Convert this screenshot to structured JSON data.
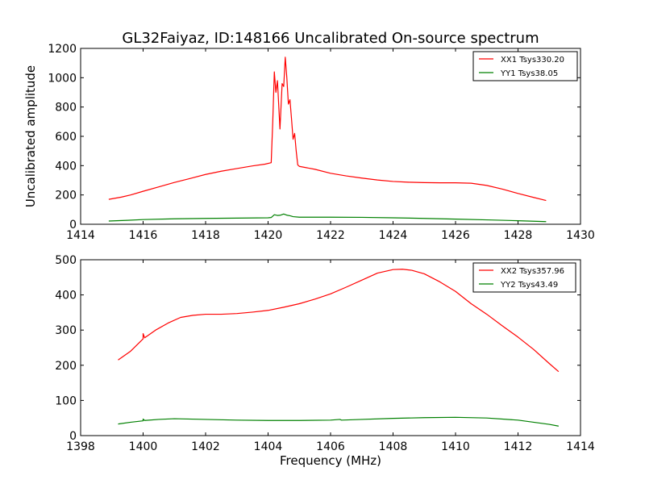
{
  "chart_data": [
    {
      "type": "line",
      "title": "GL32Faiyaz, ID:148166 Uncalibrated On-source spectrum",
      "xlabel": "",
      "ylabel": "Uncalibrated amplitude",
      "xlim": [
        1414,
        1430
      ],
      "ylim": [
        0,
        1200
      ],
      "xticks": [
        1414,
        1416,
        1418,
        1420,
        1422,
        1424,
        1426,
        1428,
        1430
      ],
      "yticks": [
        0,
        200,
        400,
        600,
        800,
        1000,
        1200
      ],
      "legend_position": "top-right",
      "series": [
        {
          "name": "XX1 Tsys330.20",
          "color": "#ff0000",
          "points": [
            [
              1414.9,
              170
            ],
            [
              1415.3,
              185
            ],
            [
              1415.6,
              200
            ],
            [
              1416.0,
              225
            ],
            [
              1416.5,
              255
            ],
            [
              1417.0,
              285
            ],
            [
              1417.5,
              312
            ],
            [
              1418.0,
              340
            ],
            [
              1418.5,
              362
            ],
            [
              1419.0,
              380
            ],
            [
              1419.5,
              398
            ],
            [
              1419.9,
              410
            ],
            [
              1420.1,
              420
            ],
            [
              1420.15,
              700
            ],
            [
              1420.2,
              1040
            ],
            [
              1420.25,
              900
            ],
            [
              1420.3,
              980
            ],
            [
              1420.38,
              650
            ],
            [
              1420.45,
              960
            ],
            [
              1420.5,
              940
            ],
            [
              1420.55,
              1140
            ],
            [
              1420.6,
              1000
            ],
            [
              1420.65,
              820
            ],
            [
              1420.7,
              850
            ],
            [
              1420.75,
              720
            ],
            [
              1420.8,
              580
            ],
            [
              1420.85,
              620
            ],
            [
              1420.9,
              500
            ],
            [
              1420.95,
              405
            ],
            [
              1421.0,
              395
            ],
            [
              1421.5,
              375
            ],
            [
              1422.0,
              348
            ],
            [
              1422.5,
              330
            ],
            [
              1423.0,
              315
            ],
            [
              1423.5,
              302
            ],
            [
              1424.0,
              292
            ],
            [
              1424.5,
              287
            ],
            [
              1425.0,
              284
            ],
            [
              1425.5,
              283
            ],
            [
              1426.0,
              283
            ],
            [
              1426.5,
              280
            ],
            [
              1427.0,
              265
            ],
            [
              1427.5,
              240
            ],
            [
              1428.0,
              210
            ],
            [
              1428.5,
              183
            ],
            [
              1428.9,
              162
            ]
          ]
        },
        {
          "name": "YY1 Tsys38.05",
          "color": "#008000",
          "points": [
            [
              1414.9,
              22
            ],
            [
              1415.5,
              27
            ],
            [
              1416.0,
              32
            ],
            [
              1417.0,
              37
            ],
            [
              1418.0,
              40
            ],
            [
              1419.0,
              42
            ],
            [
              1420.0,
              44
            ],
            [
              1420.1,
              46
            ],
            [
              1420.2,
              65
            ],
            [
              1420.3,
              60
            ],
            [
              1420.4,
              62
            ],
            [
              1420.5,
              70
            ],
            [
              1420.6,
              62
            ],
            [
              1420.7,
              58
            ],
            [
              1420.8,
              52
            ],
            [
              1421.0,
              48
            ],
            [
              1422.0,
              48
            ],
            [
              1423.0,
              47
            ],
            [
              1424.0,
              44
            ],
            [
              1425.0,
              40
            ],
            [
              1426.0,
              35
            ],
            [
              1427.0,
              30
            ],
            [
              1428.0,
              24
            ],
            [
              1428.9,
              18
            ]
          ]
        }
      ]
    },
    {
      "type": "line",
      "title": "",
      "xlabel": "Frequency (MHz)",
      "ylabel": "",
      "xlim": [
        1398,
        1414
      ],
      "ylim": [
        0,
        500
      ],
      "xticks": [
        1398,
        1400,
        1402,
        1404,
        1406,
        1408,
        1410,
        1412,
        1414
      ],
      "yticks": [
        0,
        100,
        200,
        300,
        400,
        500
      ],
      "legend_position": "top-right",
      "series": [
        {
          "name": "XX2 Tsys357.96",
          "color": "#ff0000",
          "points": [
            [
              1399.2,
              215
            ],
            [
              1399.6,
              240
            ],
            [
              1400.0,
              275
            ],
            [
              1400.0,
              290
            ],
            [
              1400.05,
              278
            ],
            [
              1400.4,
              300
            ],
            [
              1400.8,
              320
            ],
            [
              1401.2,
              336
            ],
            [
              1401.6,
              342
            ],
            [
              1402.0,
              345
            ],
            [
              1402.5,
              345
            ],
            [
              1403.0,
              347
            ],
            [
              1403.5,
              351
            ],
            [
              1404.0,
              356
            ],
            [
              1404.5,
              365
            ],
            [
              1405.0,
              375
            ],
            [
              1405.5,
              388
            ],
            [
              1406.0,
              403
            ],
            [
              1406.5,
              422
            ],
            [
              1407.0,
              442
            ],
            [
              1407.5,
              462
            ],
            [
              1408.0,
              472
            ],
            [
              1408.3,
              473
            ],
            [
              1408.6,
              470
            ],
            [
              1409.0,
              460
            ],
            [
              1409.5,
              437
            ],
            [
              1410.0,
              410
            ],
            [
              1410.5,
              375
            ],
            [
              1411.0,
              345
            ],
            [
              1411.5,
              312
            ],
            [
              1412.0,
              280
            ],
            [
              1412.5,
              245
            ],
            [
              1413.0,
              205
            ],
            [
              1413.3,
              182
            ]
          ]
        },
        {
          "name": "YY2 Tsys43.49",
          "color": "#008000",
          "points": [
            [
              1399.2,
              33
            ],
            [
              1399.6,
              38
            ],
            [
              1400.0,
              42
            ],
            [
              1400.0,
              47
            ],
            [
              1400.05,
              43
            ],
            [
              1400.5,
              46
            ],
            [
              1401.0,
              48
            ],
            [
              1402.0,
              46
            ],
            [
              1403.0,
              44
            ],
            [
              1404.0,
              43
            ],
            [
              1405.0,
              43
            ],
            [
              1406.0,
              44
            ],
            [
              1406.3,
              46
            ],
            [
              1406.35,
              44
            ],
            [
              1407.0,
              46
            ],
            [
              1408.0,
              49
            ],
            [
              1409.0,
              51
            ],
            [
              1410.0,
              52
            ],
            [
              1411.0,
              50
            ],
            [
              1412.0,
              44
            ],
            [
              1413.0,
              32
            ],
            [
              1413.3,
              27
            ]
          ]
        }
      ]
    }
  ]
}
